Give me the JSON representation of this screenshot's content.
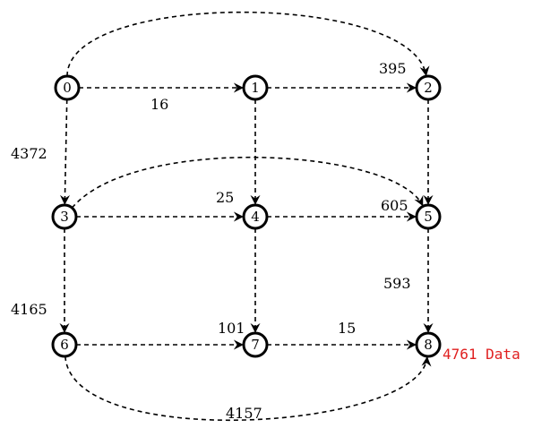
{
  "graph": {
    "nodes": [
      {
        "id": "0",
        "label": "0"
      },
      {
        "id": "1",
        "label": "1"
      },
      {
        "id": "2",
        "label": "2"
      },
      {
        "id": "3",
        "label": "3"
      },
      {
        "id": "4",
        "label": "4"
      },
      {
        "id": "5",
        "label": "5"
      },
      {
        "id": "6",
        "label": "6"
      },
      {
        "id": "7",
        "label": "7"
      },
      {
        "id": "8",
        "label": "8"
      }
    ],
    "edges": [
      {
        "from": "0",
        "to": "1",
        "label": "16"
      },
      {
        "from": "0",
        "to": "2",
        "label": ""
      },
      {
        "from": "0",
        "to": "3",
        "label": "4372"
      },
      {
        "from": "1",
        "to": "2",
        "label": "395"
      },
      {
        "from": "1",
        "to": "4",
        "label": "25"
      },
      {
        "from": "2",
        "to": "5",
        "label": "605"
      },
      {
        "from": "3",
        "to": "4",
        "label": ""
      },
      {
        "from": "3",
        "to": "5",
        "label": ""
      },
      {
        "from": "3",
        "to": "6",
        "label": "4165"
      },
      {
        "from": "4",
        "to": "5",
        "label": ""
      },
      {
        "from": "4",
        "to": "7",
        "label": "101"
      },
      {
        "from": "5",
        "to": "8",
        "label": "593"
      },
      {
        "from": "6",
        "to": "7",
        "label": ""
      },
      {
        "from": "6",
        "to": "8",
        "label": "4157"
      },
      {
        "from": "7",
        "to": "8",
        "label": "15"
      }
    ],
    "result": {
      "text": "4761 Data",
      "color": "#e02020"
    }
  }
}
